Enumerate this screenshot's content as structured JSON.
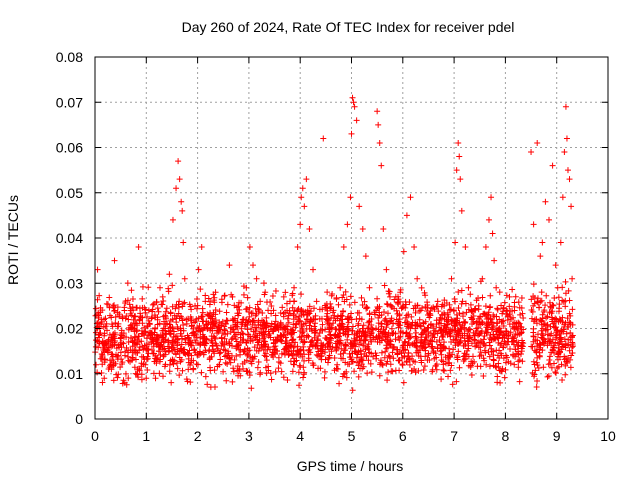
{
  "chart_data": {
    "type": "scatter",
    "title": "Day 260 of 2024, Rate Of TEC Index for receiver pdel",
    "xlabel": "GPS time / hours",
    "ylabel": "ROTI / TECUs",
    "xlim": [
      0,
      10
    ],
    "ylim": [
      0,
      0.08
    ],
    "grid": true,
    "marker": "+",
    "xticks": [
      0,
      1,
      2,
      3,
      4,
      5,
      6,
      7,
      8,
      9,
      10
    ],
    "xtick_labels": [
      "0",
      "1",
      "2",
      "3",
      "4",
      "5",
      "6",
      "7",
      "8",
      "9",
      "10"
    ],
    "yticks": [
      0,
      0.01,
      0.02,
      0.03,
      0.04,
      0.05,
      0.06,
      0.07,
      0.08
    ],
    "ytick_labels": [
      "0",
      "0.01",
      "0.02",
      "0.03",
      "0.04",
      "0.05",
      "0.06",
      "0.07",
      "0.08"
    ],
    "colors": {
      "series": "#ff0000",
      "axes": "#000000",
      "grid": "#a0a0a0"
    },
    "series": [
      {
        "name": "ROTI",
        "x": [
          0.02,
          0.05,
          0.08,
          0.12,
          0.18,
          0.25,
          0.32,
          0.38,
          0.45,
          0.52,
          0.58,
          0.65,
          0.72,
          0.78,
          0.85,
          0.92,
          0.98,
          1.05,
          1.12,
          1.18,
          1.25,
          1.32,
          1.38,
          1.45,
          1.52,
          1.58,
          1.62,
          1.65,
          1.68,
          1.7,
          1.72,
          1.75,
          1.78,
          1.82,
          1.88,
          1.95,
          2.02,
          2.08,
          2.15,
          2.22,
          2.28,
          2.35,
          2.42,
          2.48,
          2.55,
          2.62,
          2.68,
          2.75,
          2.82,
          2.88,
          2.95,
          3.02,
          3.08,
          3.15,
          3.22,
          3.28,
          3.35,
          3.42,
          3.48,
          3.55,
          3.62,
          3.68,
          3.75,
          3.82,
          3.88,
          3.95,
          4.0,
          4.02,
          4.05,
          4.08,
          4.12,
          4.18,
          4.25,
          4.32,
          4.38,
          4.45,
          4.52,
          4.58,
          4.65,
          4.72,
          4.78,
          4.85,
          4.92,
          4.98,
          5.0,
          5.02,
          5.04,
          5.06,
          5.1,
          5.15,
          5.22,
          5.28,
          5.35,
          5.42,
          5.48,
          5.5,
          5.52,
          5.55,
          5.58,
          5.62,
          5.68,
          5.75,
          5.82,
          5.88,
          5.95,
          6.02,
          6.08,
          6.15,
          6.22,
          6.28,
          6.35,
          6.42,
          6.48,
          6.55,
          6.62,
          6.68,
          6.75,
          6.82,
          6.88,
          6.95,
          7.02,
          7.05,
          7.08,
          7.1,
          7.12,
          7.15,
          7.22,
          7.28,
          7.35,
          7.42,
          7.48,
          7.55,
          7.62,
          7.68,
          7.72,
          7.75,
          7.78,
          7.82,
          7.88,
          7.95,
          8.02,
          8.08,
          8.15,
          8.22,
          8.28,
          8.32,
          8.5,
          8.55,
          8.62,
          8.68,
          8.72,
          8.78,
          8.85,
          8.92,
          8.98,
          9.02,
          9.08,
          9.12,
          9.15,
          9.18,
          9.2,
          9.22,
          9.25,
          9.28,
          9.3
        ],
        "y": [
          0.012,
          0.033,
          0.018,
          0.021,
          0.009,
          0.015,
          0.011,
          0.035,
          0.014,
          0.019,
          0.008,
          0.022,
          0.013,
          0.017,
          0.038,
          0.016,
          0.012,
          0.024,
          0.018,
          0.009,
          0.015,
          0.027,
          0.021,
          0.032,
          0.044,
          0.051,
          0.057,
          0.053,
          0.048,
          0.046,
          0.039,
          0.031,
          0.022,
          0.018,
          0.014,
          0.025,
          0.033,
          0.038,
          0.026,
          0.015,
          0.02,
          0.028,
          0.012,
          0.017,
          0.021,
          0.034,
          0.027,
          0.016,
          0.011,
          0.022,
          0.029,
          0.038,
          0.034,
          0.031,
          0.026,
          0.019,
          0.013,
          0.018,
          0.024,
          0.015,
          0.021,
          0.027,
          0.019,
          0.016,
          0.029,
          0.038,
          0.043,
          0.049,
          0.051,
          0.047,
          0.053,
          0.042,
          0.033,
          0.026,
          0.019,
          0.062,
          0.022,
          0.018,
          0.024,
          0.012,
          0.029,
          0.038,
          0.043,
          0.049,
          0.063,
          0.071,
          0.07,
          0.069,
          0.066,
          0.047,
          0.042,
          0.036,
          0.029,
          0.018,
          0.024,
          0.068,
          0.065,
          0.061,
          0.056,
          0.042,
          0.033,
          0.027,
          0.019,
          0.022,
          0.028,
          0.037,
          0.045,
          0.049,
          0.038,
          0.031,
          0.024,
          0.017,
          0.013,
          0.021,
          0.018,
          0.026,
          0.019,
          0.023,
          0.014,
          0.031,
          0.039,
          0.055,
          0.061,
          0.058,
          0.053,
          0.046,
          0.038,
          0.029,
          0.022,
          0.019,
          0.025,
          0.031,
          0.038,
          0.044,
          0.049,
          0.041,
          0.035,
          0.029,
          0.022,
          0.018,
          0.024,
          0.027,
          0.021,
          0.017,
          0.013,
          0.015,
          0.059,
          0.043,
          0.061,
          0.036,
          0.039,
          0.048,
          0.044,
          0.056,
          0.034,
          0.029,
          0.039,
          0.049,
          0.059,
          0.069,
          0.062,
          0.055,
          0.053,
          0.047,
          0.031
        ]
      }
    ],
    "dense_band": {
      "x_start": 0.0,
      "x_end": 9.32,
      "y_low": 0.005,
      "y_high": 0.028,
      "gap_x_start": 8.35,
      "gap_x_end": 8.5
    }
  }
}
